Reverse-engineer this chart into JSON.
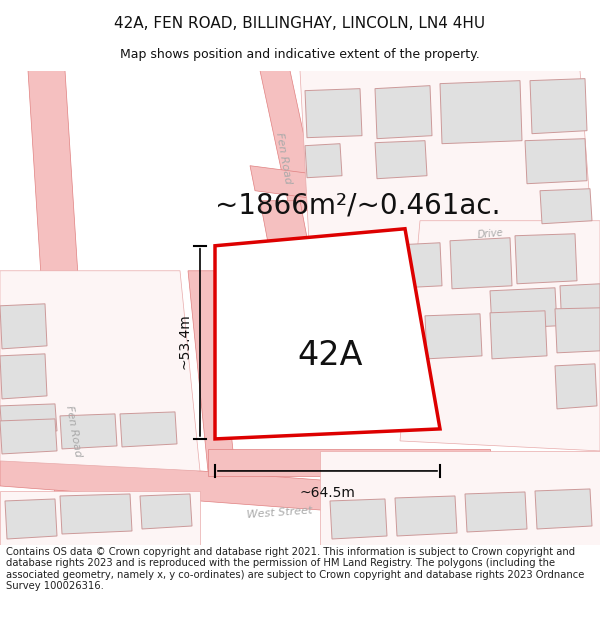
{
  "title": "42A, FEN ROAD, BILLINGHAY, LINCOLN, LN4 4HU",
  "subtitle": "Map shows position and indicative extent of the property.",
  "area_label": "~1866m²/~0.461ac.",
  "plot_label": "42A",
  "dim_width": "~64.5m",
  "dim_height": "~53.4m",
  "footer": "Contains OS data © Crown copyright and database right 2021. This information is subject to Crown copyright and database rights 2023 and is reproduced with the permission of HM Land Registry. The polygons (including the associated geometry, namely x, y co-ordinates) are subject to Crown copyright and database rights 2023 Ordnance Survey 100026316.",
  "road_color": "#f5c0c0",
  "road_edge": "#e08080",
  "road_line_color": "#ccaaaa",
  "plot_fill": "#ffffff",
  "plot_edge": "#dd0000",
  "building_fill": "#e0e0e0",
  "building_edge": "#cc9999",
  "parcel_fill": "#fdf5f5",
  "parcel_edge": "#e8aaaa",
  "text_color": "#111111",
  "road_text_color": "#aaaaaa",
  "footer_color": "#222222",
  "title_fontsize": 11,
  "subtitle_fontsize": 9,
  "area_fontsize": 20,
  "plot_label_fontsize": 24,
  "dim_fontsize": 10,
  "footer_fontsize": 7.2,
  "road_label_fontsize": 8
}
